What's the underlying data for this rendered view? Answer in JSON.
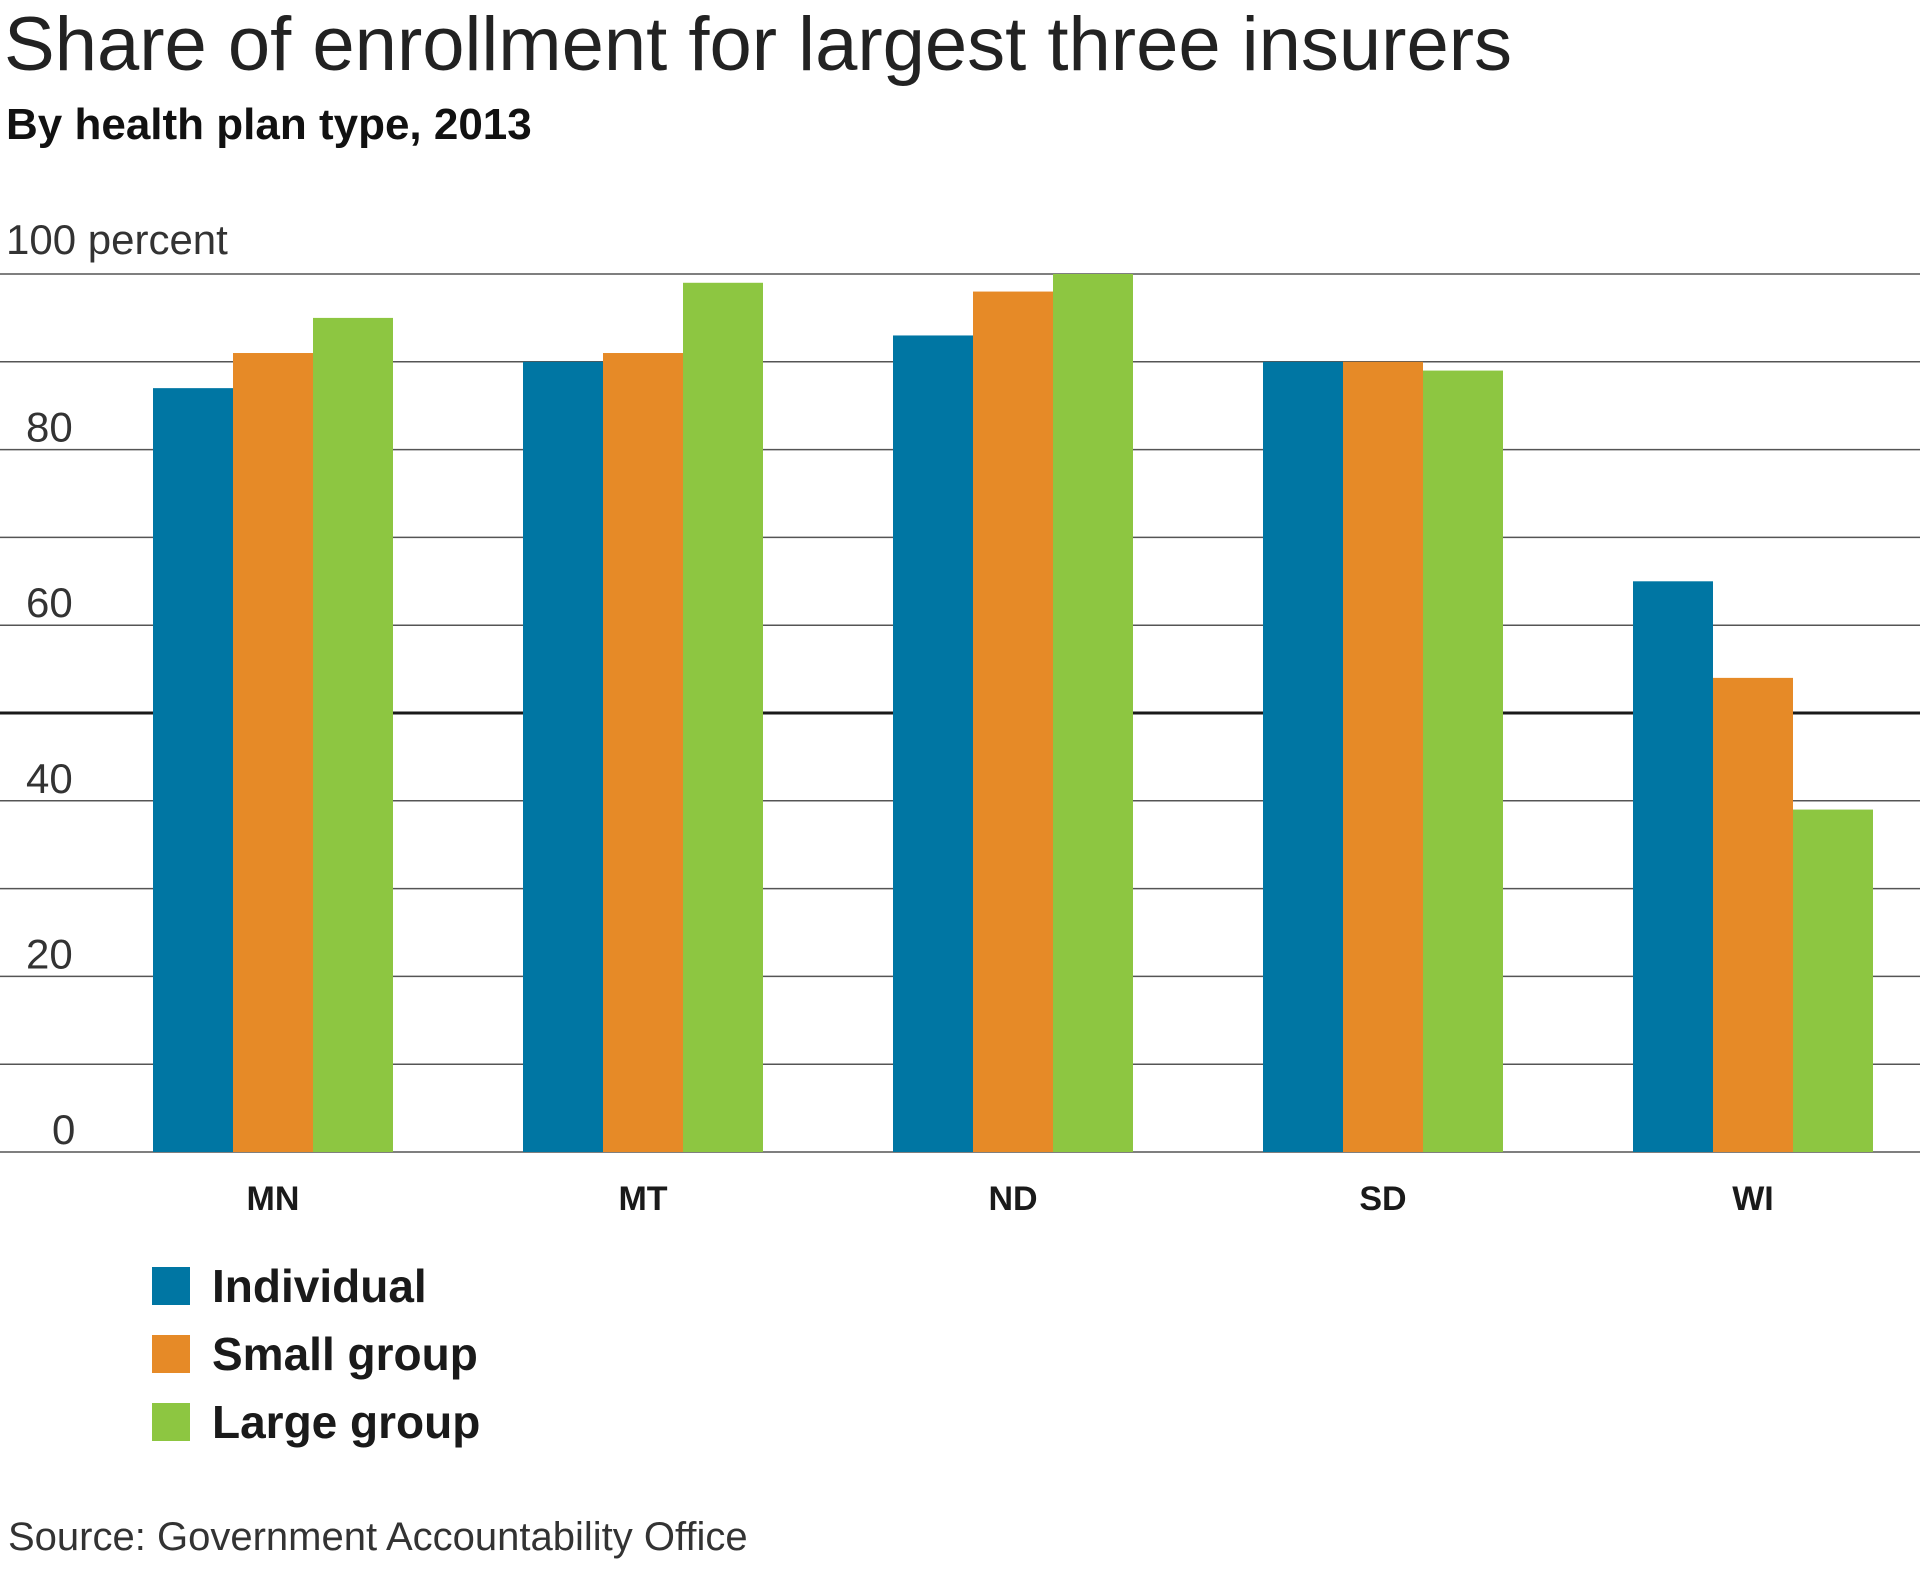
{
  "chart_data": {
    "type": "bar",
    "title": "Share of enrollment for largest three insurers",
    "subtitle": "By health plan type, 2013",
    "ylabel": "percent",
    "ylim": [
      0,
      100
    ],
    "yticks": [
      0,
      20,
      40,
      60,
      80,
      100
    ],
    "ytick_labels": [
      "0",
      "20",
      "40",
      "60",
      "80",
      "100 percent"
    ],
    "grid": true,
    "categories": [
      "MN",
      "MT",
      "ND",
      "SD",
      "WI"
    ],
    "series": [
      {
        "name": "Individual",
        "color": "#0076a3",
        "values": [
          87,
          90,
          93,
          90,
          65
        ]
      },
      {
        "name": "Small group",
        "color": "#e68a27",
        "values": [
          91,
          91,
          98,
          90,
          54
        ]
      },
      {
        "name": "Large group",
        "color": "#8dc641",
        "values": [
          95,
          99,
          100,
          89,
          39
        ]
      }
    ],
    "legend_position": "bottom-left",
    "source": "Source: Government Accountability Office"
  }
}
